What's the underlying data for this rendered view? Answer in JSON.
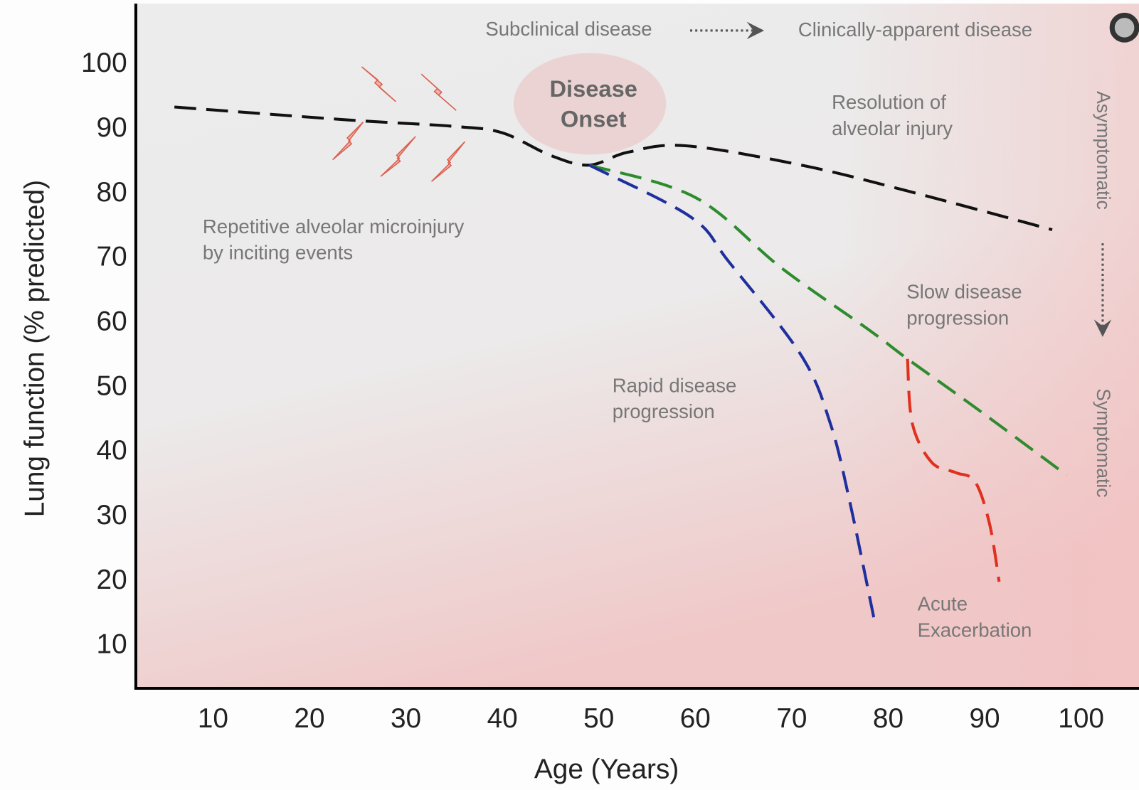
{
  "chart_data": {
    "type": "line",
    "xlabel": "Age (Years)",
    "ylabel": "Lung function (% predicted)",
    "xlim": [
      2,
      106
    ],
    "ylim": [
      3,
      109
    ],
    "xticks": [
      10,
      20,
      30,
      40,
      50,
      60,
      70,
      80,
      90,
      100
    ],
    "yticks": [
      10,
      20,
      30,
      40,
      50,
      60,
      70,
      80,
      90,
      100
    ],
    "grid": false,
    "series": [
      {
        "color": "#111111",
        "x": [
          6,
          24,
          35,
          40,
          45,
          49,
          53,
          59,
          71,
          82,
          97
        ],
        "values": [
          93,
          91,
          90,
          89,
          85.5,
          84,
          86,
          87,
          84,
          80,
          74
        ]
      },
      {
        "color": "#2e8b2e",
        "x": [
          49,
          60,
          69,
          78,
          82,
          89,
          98.5
        ],
        "values": [
          84,
          79,
          68,
          58.5,
          54,
          46.5,
          36
        ]
      },
      {
        "color": "#1f2f9e",
        "x": [
          49,
          59.5,
          63.5,
          71,
          74,
          76,
          78.5
        ],
        "values": [
          84,
          76,
          69,
          54.5,
          44,
          32,
          14
        ]
      },
      {
        "color": "#e0301e",
        "x": [
          82,
          82.5,
          84.5,
          87,
          89,
          90.5,
          91.5
        ],
        "values": [
          54,
          44,
          38,
          36.4,
          35,
          28.5,
          19.5
        ]
      }
    ],
    "annotations": [
      {
        "lines": [
          "Subclinical disease"
        ]
      },
      {
        "lines": [
          "Clinically-apparent disease"
        ]
      },
      {
        "lines": [
          "Disease",
          "Onset"
        ]
      },
      {
        "lines": [
          "Resolution of",
          "alveolar injury"
        ]
      },
      {
        "lines": [
          "Repetitive alveolar microinjury",
          "by inciting events"
        ]
      },
      {
        "lines": [
          "Slow disease",
          "progression"
        ]
      },
      {
        "lines": [
          "Rapid disease",
          "progression"
        ]
      },
      {
        "lines": [
          "Acute",
          "Exacerbation"
        ]
      },
      {
        "lines": [
          "Asymptomatic"
        ]
      },
      {
        "lines": [
          "Symptomatic"
        ]
      }
    ]
  }
}
